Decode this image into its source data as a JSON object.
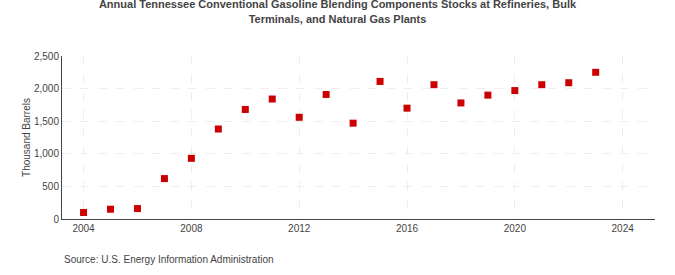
{
  "chart_data": {
    "type": "scatter",
    "title": "Annual Tennessee Conventional Gasoline Blending Components Stocks at Refineries, Bulk\nTerminals, and Natural Gas Plants",
    "ylabel": "Thousand Barrels",
    "annotations": [
      "Source: U.S. Energy Information Administration"
    ],
    "x": [
      2004,
      2005,
      2006,
      2007,
      2008,
      2009,
      2010,
      2011,
      2012,
      2013,
      2014,
      2015,
      2016,
      2017,
      2018,
      2019,
      2020,
      2021,
      2022,
      2023,
      2024
    ],
    "values": [
      100,
      150,
      160,
      620,
      930,
      1380,
      1680,
      1840,
      1560,
      1910,
      1470,
      2110,
      1700,
      2060,
      1780,
      1900,
      1970,
      2060,
      2090,
      2250,
      null
    ],
    "color": "#cc0000",
    "marker": "square",
    "xlim": [
      2003.2,
      2025.2
    ],
    "xticks": [
      2004,
      2008,
      2012,
      2016,
      2020,
      2024
    ],
    "ylim": [
      0,
      2500
    ],
    "yticks": [
      0,
      500,
      {
        "value": 1000,
        "label": "1,000"
      },
      {
        "value": 1500,
        "label": "1,500"
      },
      {
        "value": 2000,
        "label": "2,000"
      },
      {
        "value": 2500,
        "label": "2,500"
      }
    ],
    "grid": true
  }
}
